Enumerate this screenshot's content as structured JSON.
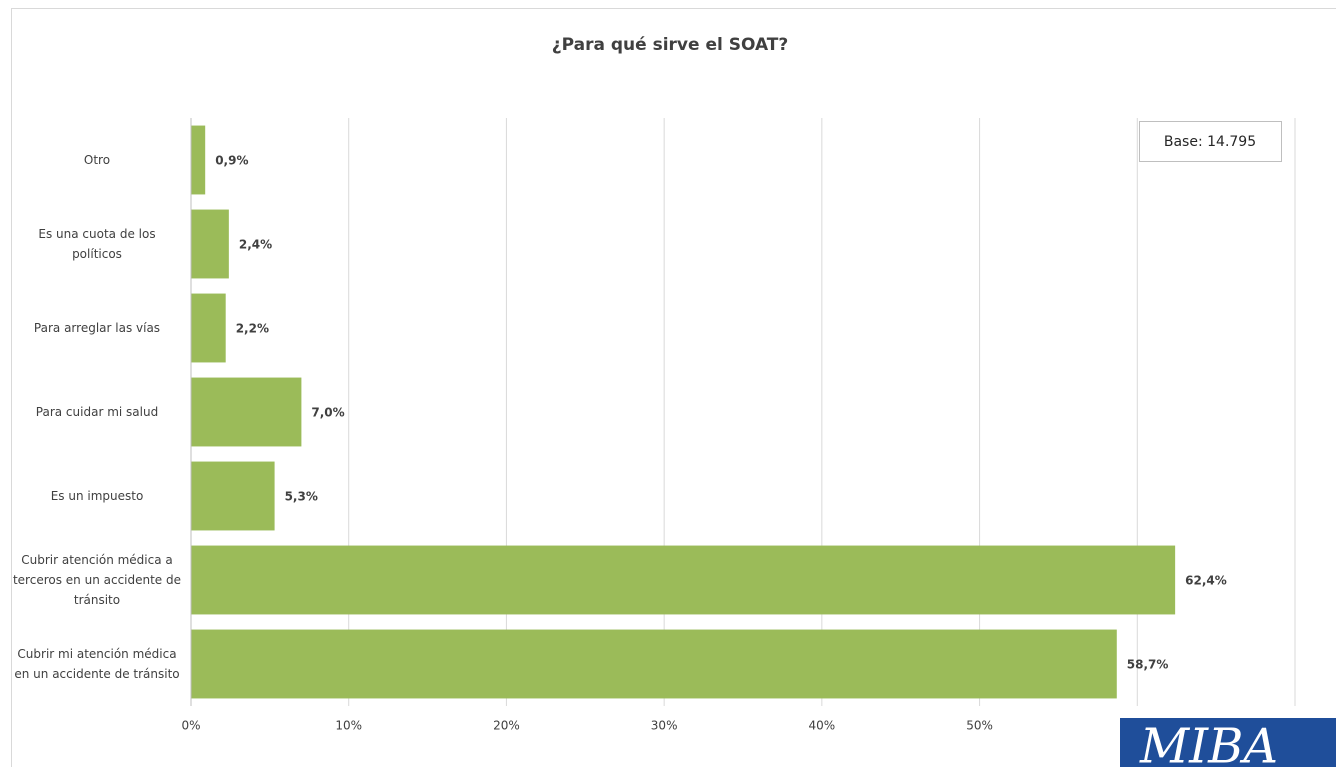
{
  "chart_data": {
    "type": "barh",
    "title": "¿Para qué sirve el SOAT?",
    "annotation": "Base: 14.795",
    "logo": "MIBA",
    "categories": [
      "Otro",
      "Es una cuota de los políticos",
      "Para arreglar las vías",
      "Para cuidar mi salud",
      "Es un impuesto",
      "Cubrir atención médica a terceros en un accidente de tránsito",
      "Cubrir mi atención médica en un accidente de tránsito"
    ],
    "values": [
      0.9,
      2.4,
      2.2,
      7.0,
      5.3,
      62.4,
      58.7
    ],
    "value_labels": [
      "0,9%",
      "2,4%",
      "2,2%",
      "7,0%",
      "5,3%",
      "62,4%",
      "58,7%"
    ],
    "color": "#9bbb59",
    "xlim": [
      0,
      70
    ],
    "xticks": [
      {
        "value": 0,
        "label": "0%"
      },
      {
        "value": 10,
        "label": "10%"
      },
      {
        "value": 20,
        "label": "20%"
      },
      {
        "value": 30,
        "label": "30%"
      },
      {
        "value": 40,
        "label": "40%"
      },
      {
        "value": 50,
        "label": "50%"
      },
      {
        "value": 60,
        "label": null
      },
      {
        "value": 70,
        "label": null
      }
    ],
    "grid": true
  }
}
